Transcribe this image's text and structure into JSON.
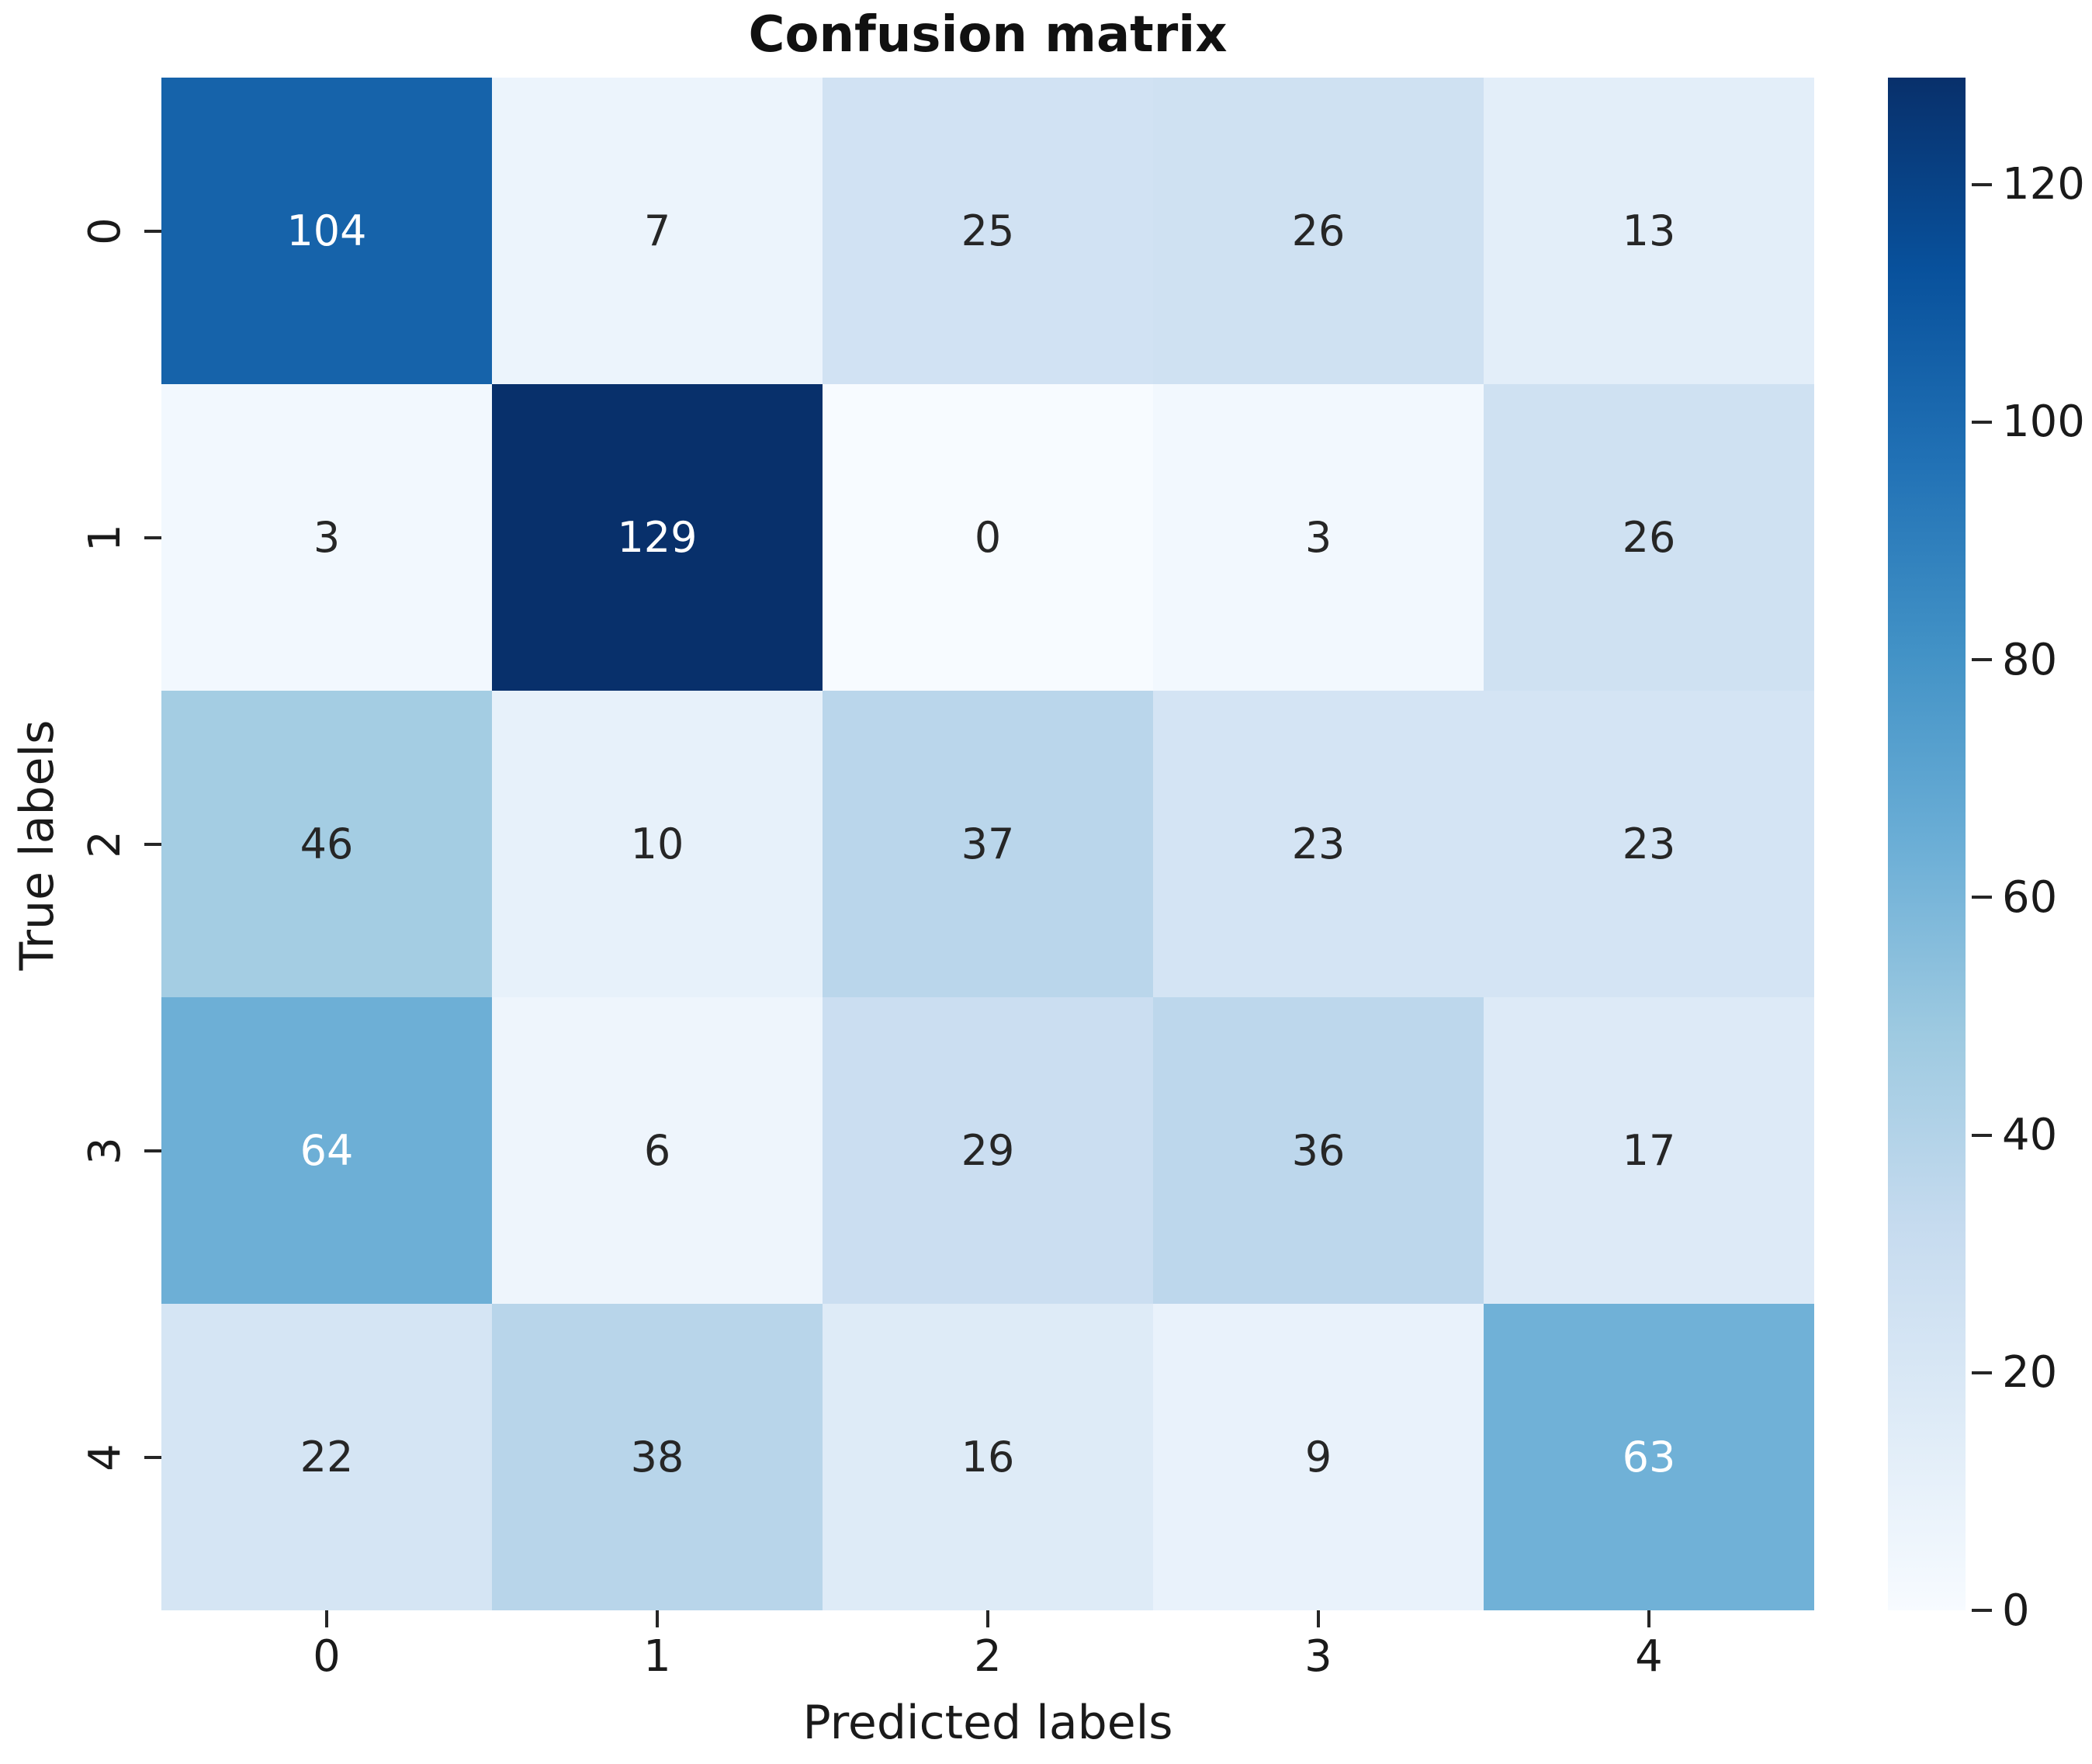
{
  "figure": {
    "background": "#ffffff"
  },
  "chart_data": {
    "type": "heatmap",
    "title": "Confusion matrix",
    "xlabel": "Predicted labels",
    "ylabel": "True labels",
    "x_tick_labels": [
      "0",
      "1",
      "2",
      "3",
      "4"
    ],
    "y_tick_labels": [
      "0",
      "1",
      "2",
      "3",
      "4"
    ],
    "matrix": [
      [
        104,
        7,
        25,
        26,
        13
      ],
      [
        3,
        129,
        0,
        3,
        26
      ],
      [
        46,
        10,
        37,
        23,
        23
      ],
      [
        64,
        6,
        29,
        36,
        17
      ],
      [
        22,
        38,
        16,
        9,
        63
      ]
    ],
    "vmin": 0,
    "vmax": 129,
    "colormap_name": "Blues",
    "colormap_stops": [
      [
        0.0,
        "#f7fbff"
      ],
      [
        0.125,
        "#deebf7"
      ],
      [
        0.25,
        "#c6dbef"
      ],
      [
        0.375,
        "#9ecae1"
      ],
      [
        0.5,
        "#6baed6"
      ],
      [
        0.625,
        "#4292c6"
      ],
      [
        0.75,
        "#2171b5"
      ],
      [
        0.875,
        "#08519c"
      ],
      [
        1.0,
        "#08306b"
      ]
    ],
    "colorbar_ticks": [
      0,
      20,
      40,
      60,
      80,
      100,
      120
    ],
    "annotation_dark_color": "#262626",
    "annotation_light_color": "#ffffff",
    "luminance_threshold": 0.408,
    "legend_position": "right-colorbar",
    "grid": false
  }
}
